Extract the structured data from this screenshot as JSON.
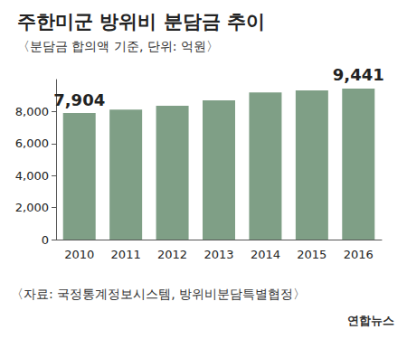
{
  "chart_data": {
    "type": "bar",
    "title": "주한미군 방위비 분담금 추이",
    "subtitle": "〈분담금 합의액 기준, 단위: 억원〉",
    "source": "〈자료: 국정통계정보시스템, 방위비분담특별협정〉",
    "credit": "연합뉴스",
    "categories": [
      "2010",
      "2011",
      "2012",
      "2013",
      "2014",
      "2015",
      "2016"
    ],
    "values": [
      7904,
      8125,
      8361,
      8695,
      9200,
      9320,
      9441
    ],
    "value_labels": [
      "7,904",
      null,
      null,
      null,
      null,
      null,
      "9,441"
    ],
    "color": "#7f9f86",
    "ylim": [
      0,
      10000
    ],
    "yticks": [
      0,
      {
        "value": 2000,
        "label": "2,000"
      },
      {
        "value": 4000,
        "label": "4,000"
      },
      {
        "value": 6000,
        "label": "6,000"
      },
      {
        "value": 8000,
        "label": "8,000"
      }
    ],
    "grid": false
  }
}
